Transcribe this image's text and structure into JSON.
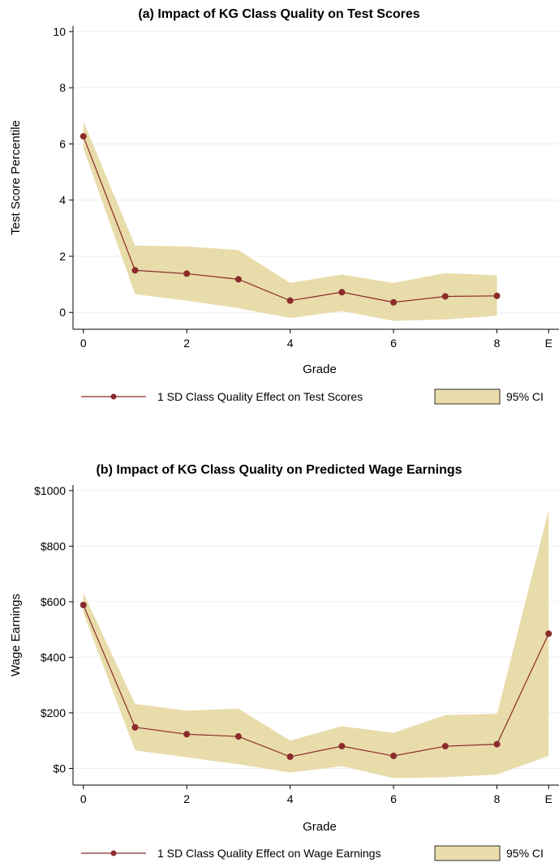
{
  "chart_data": [
    {
      "type": "line",
      "title": "(a) Impact of KG Class Quality on Test Scores",
      "xlabel": "Grade",
      "ylabel": "Test Score Percentile",
      "xlim": [
        -0.2,
        9.2
      ],
      "ylim": [
        -0.6,
        10.2
      ],
      "x_ticks": [
        0,
        2,
        4,
        6,
        8,
        9
      ],
      "x_tick_labels": [
        "0",
        "2",
        "4",
        "6",
        "8",
        "E"
      ],
      "y_ticks": [
        0,
        2,
        4,
        6,
        8,
        10
      ],
      "y_tick_labels": [
        "0",
        "2",
        "4",
        "6",
        "8",
        "10"
      ],
      "grid": "horizontal",
      "legend_placement": "bottom",
      "line_color": "#8b2b2b",
      "ci_color": "#e8dcaa",
      "ci_edge_color": "#d8c88a",
      "series": [
        {
          "name": "1 SD Class Quality Effect on Test Scores",
          "x": [
            0,
            1,
            2,
            3,
            4,
            5,
            6,
            7,
            8
          ],
          "values": [
            6.27,
            1.5,
            1.38,
            1.18,
            0.42,
            0.72,
            0.36,
            0.57,
            0.59
          ]
        }
      ],
      "ci": {
        "name": "95% CI",
        "x": [
          0,
          1,
          2,
          3,
          4,
          5,
          6,
          7,
          8
        ],
        "lower": [
          5.85,
          0.65,
          0.42,
          0.15,
          -0.2,
          0.05,
          -0.3,
          -0.25,
          -0.12
        ],
        "upper": [
          6.8,
          2.38,
          2.35,
          2.22,
          1.05,
          1.35,
          1.05,
          1.4,
          1.32
        ]
      }
    },
    {
      "type": "line",
      "title": "(b) Impact of KG Class Quality on Predicted Wage Earnings",
      "xlabel": "Grade",
      "ylabel": "Wage Earnings",
      "xlim": [
        -0.2,
        9.2
      ],
      "ylim": [
        -60,
        1020
      ],
      "x_ticks": [
        0,
        2,
        4,
        6,
        8,
        9
      ],
      "x_tick_labels": [
        "0",
        "2",
        "4",
        "6",
        "8",
        "E"
      ],
      "y_ticks": [
        0,
        200,
        400,
        600,
        800,
        1000
      ],
      "y_tick_labels": [
        "$0",
        "$200",
        "$400",
        "$600",
        "$800",
        "$1000"
      ],
      "grid": "horizontal",
      "legend_placement": "bottom",
      "line_color": "#8b2b2b",
      "ci_color": "#e8dcaa",
      "ci_edge_color": "#d8c88a",
      "series": [
        {
          "name": "1 SD Class Quality Effect on Wage Earnings",
          "x": [
            0,
            1,
            2,
            3,
            4,
            5,
            6,
            7,
            8,
            9
          ],
          "values": [
            588,
            148,
            123,
            115,
            42,
            80,
            45,
            80,
            87,
            485
          ]
        }
      ],
      "ci": {
        "name": "95% CI",
        "x": [
          0,
          1,
          2,
          3,
          4,
          5,
          6,
          7,
          8,
          9
        ],
        "lower": [
          560,
          65,
          40,
          15,
          -15,
          8,
          -35,
          -32,
          -22,
          45
        ],
        "upper": [
          632,
          232,
          208,
          215,
          100,
          152,
          128,
          192,
          196,
          930
        ]
      }
    }
  ]
}
